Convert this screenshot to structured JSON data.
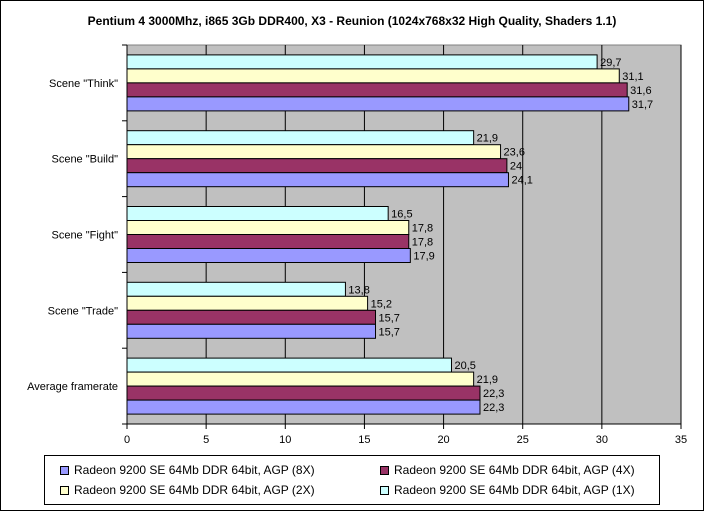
{
  "chart_data": {
    "type": "bar",
    "orientation": "horizontal",
    "title": "Pentium 4 3000Mhz, i865 3Gb DDR400, X3 - Reunion (1024x768x32 High Quality, Shaders 1.1)",
    "categories": [
      "Scene \"Think\"",
      "Scene \"Build\"",
      "Scene \"Fight\"",
      "Scene \"Trade\"",
      "Average framerate"
    ],
    "series": [
      {
        "name": "Radeon 9200 SE 64Mb DDR 64bit, AGP (1X)",
        "color": "#ccffff",
        "values": [
          29.7,
          21.9,
          16.5,
          13.8,
          20.5
        ]
      },
      {
        "name": "Radeon 9200 SE 64Mb DDR 64bit, AGP (2X)",
        "color": "#ffffcc",
        "values": [
          31.1,
          23.6,
          17.8,
          15.2,
          21.9
        ]
      },
      {
        "name": "Radeon 9200 SE 64Mb DDR 64bit, AGP (4X)",
        "color": "#993366",
        "values": [
          31.6,
          24,
          17.8,
          15.7,
          22.3
        ]
      },
      {
        "name": "Radeon 9200 SE 64Mb DDR 64bit, AGP (8X)",
        "color": "#9999ff",
        "values": [
          31.7,
          24.1,
          17.9,
          15.7,
          22.3
        ]
      }
    ],
    "value_labels": [
      [
        "29,7",
        "21,9",
        "16,5",
        "13,8",
        "20,5"
      ],
      [
        "31,1",
        "23,6",
        "17,8",
        "15,2",
        "21,9"
      ],
      [
        "31,6",
        "24",
        "17,8",
        "15,7",
        "22,3"
      ],
      [
        "31,7",
        "24,1",
        "17,9",
        "15,7",
        "22,3"
      ]
    ],
    "xlim": [
      0,
      35
    ],
    "xticks": [
      0,
      5,
      10,
      15,
      20,
      25,
      30,
      35
    ],
    "xlabel": "",
    "ylabel": "",
    "grid": true,
    "plot_background": "#c0c0c0",
    "legend": {
      "position": "bottom",
      "order": [
        3,
        2,
        1,
        0
      ]
    }
  }
}
